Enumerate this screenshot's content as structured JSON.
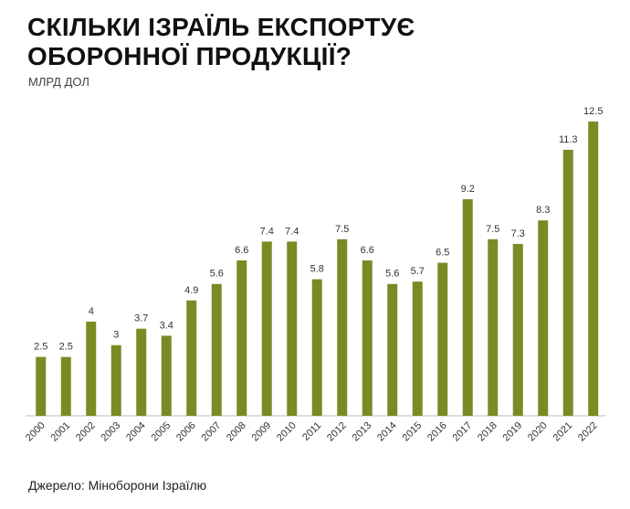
{
  "chart_data": {
    "type": "bar",
    "title": "СКІЛЬКИ ІЗРАЇЛЬ ЕКСПОРТУЄ ОБОРОННОЇ ПРОДУКЦІЇ?",
    "subtitle": "МЛРД ДОЛ",
    "source": "Джерело: Міноборони Ізраїлю",
    "categories": [
      "2000",
      "2001",
      "2002",
      "2003",
      "2004",
      "2005",
      "2006",
      "2007",
      "2008",
      "2009",
      "2010",
      "2011",
      "2012",
      "2013",
      "2014",
      "2015",
      "2016",
      "2017",
      "2018",
      "2019",
      "2020",
      "2021",
      "2022"
    ],
    "values": [
      2.5,
      2.5,
      4,
      3,
      3.7,
      3.4,
      4.9,
      5.6,
      6.6,
      7.4,
      7.4,
      5.8,
      7.5,
      6.6,
      5.6,
      5.7,
      6.5,
      9.2,
      7.5,
      7.3,
      8.3,
      11.3,
      12.5
    ],
    "color": "#7b8a22",
    "ylim": [
      0,
      12.5
    ]
  }
}
